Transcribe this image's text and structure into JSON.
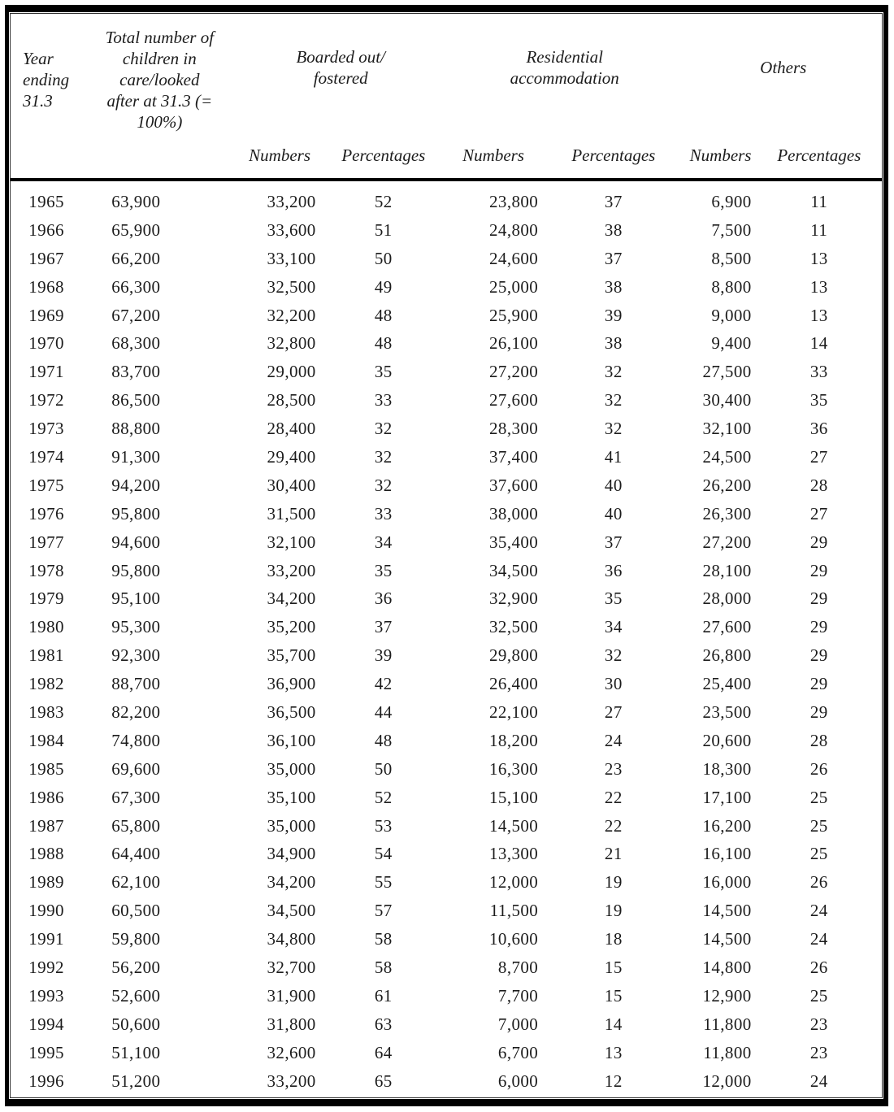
{
  "table": {
    "header": {
      "year": "Year\nending\n31.3",
      "total": "Total number of\nchildren in\ncare/looked\nafter at 31.3 (=\n100%)",
      "boarded_out": "Boarded out/\nfostered",
      "residential": "Residential\naccommodation",
      "others": "Others",
      "numbers_label": "Numbers",
      "percentages_label": "Percentages"
    },
    "columns": [
      "year",
      "total-in-care",
      "boarded-out-numbers",
      "boarded-out-percentage",
      "residential-numbers",
      "residential-percentage",
      "others-numbers",
      "others-percentage"
    ],
    "rows": [
      [
        "1965",
        "63,900",
        "33,200",
        "52",
        "23,800",
        "37",
        "6,900",
        "11"
      ],
      [
        "1966",
        "65,900",
        "33,600",
        "51",
        "24,800",
        "38",
        "7,500",
        "11"
      ],
      [
        "1967",
        "66,200",
        "33,100",
        "50",
        "24,600",
        "37",
        "8,500",
        "13"
      ],
      [
        "1968",
        "66,300",
        "32,500",
        "49",
        "25,000",
        "38",
        "8,800",
        "13"
      ],
      [
        "1969",
        "67,200",
        "32,200",
        "48",
        "25,900",
        "39",
        "9,000",
        "13"
      ],
      [
        "1970",
        "68,300",
        "32,800",
        "48",
        "26,100",
        "38",
        "9,400",
        "14"
      ],
      [
        "1971",
        "83,700",
        "29,000",
        "35",
        "27,200",
        "32",
        "27,500",
        "33"
      ],
      [
        "1972",
        "86,500",
        "28,500",
        "33",
        "27,600",
        "32",
        "30,400",
        "35"
      ],
      [
        "1973",
        "88,800",
        "28,400",
        "32",
        "28,300",
        "32",
        "32,100",
        "36"
      ],
      [
        "1974",
        "91,300",
        "29,400",
        "32",
        "37,400",
        "41",
        "24,500",
        "27"
      ],
      [
        "1975",
        "94,200",
        "30,400",
        "32",
        "37,600",
        "40",
        "26,200",
        "28"
      ],
      [
        "1976",
        "95,800",
        "31,500",
        "33",
        "38,000",
        "40",
        "26,300",
        "27"
      ],
      [
        "1977",
        "94,600",
        "32,100",
        "34",
        "35,400",
        "37",
        "27,200",
        "29"
      ],
      [
        "1978",
        "95,800",
        "33,200",
        "35",
        "34,500",
        "36",
        "28,100",
        "29"
      ],
      [
        "1979",
        "95,100",
        "34,200",
        "36",
        "32,900",
        "35",
        "28,000",
        "29"
      ],
      [
        "1980",
        "95,300",
        "35,200",
        "37",
        "32,500",
        "34",
        "27,600",
        "29"
      ],
      [
        "1981",
        "92,300",
        "35,700",
        "39",
        "29,800",
        "32",
        "26,800",
        "29"
      ],
      [
        "1982",
        "88,700",
        "36,900",
        "42",
        "26,400",
        "30",
        "25,400",
        "29"
      ],
      [
        "1983",
        "82,200",
        "36,500",
        "44",
        "22,100",
        "27",
        "23,500",
        "29"
      ],
      [
        "1984",
        "74,800",
        "36,100",
        "48",
        "18,200",
        "24",
        "20,600",
        "28"
      ],
      [
        "1985",
        "69,600",
        "35,000",
        "50",
        "16,300",
        "23",
        "18,300",
        "26"
      ],
      [
        "1986",
        "67,300",
        "35,100",
        "52",
        "15,100",
        "22",
        "17,100",
        "25"
      ],
      [
        "1987",
        "65,800",
        "35,000",
        "53",
        "14,500",
        "22",
        "16,200",
        "25"
      ],
      [
        "1988",
        "64,400",
        "34,900",
        "54",
        "13,300",
        "21",
        "16,100",
        "25"
      ],
      [
        "1989",
        "62,100",
        "34,200",
        "55",
        "12,000",
        "19",
        "16,000",
        "26"
      ],
      [
        "1990",
        "60,500",
        "34,500",
        "57",
        "11,500",
        "19",
        "14,500",
        "24"
      ],
      [
        "1991",
        "59,800",
        "34,800",
        "58",
        "10,600",
        "18",
        "14,500",
        "24"
      ],
      [
        "1992",
        "56,200",
        "32,700",
        "58",
        "8,700",
        "15",
        "14,800",
        "26"
      ],
      [
        "1993",
        "52,600",
        "31,900",
        "61",
        "7,700",
        "15",
        "12,900",
        "25"
      ],
      [
        "1994",
        "50,600",
        "31,800",
        "63",
        "7,000",
        "14",
        "11,800",
        "23"
      ],
      [
        "1995",
        "51,100",
        "32,600",
        "64",
        "6,700",
        "13",
        "11,800",
        "23"
      ],
      [
        "1996",
        "51,200",
        "33,200",
        "65",
        "6,000",
        "12",
        "12,000",
        "24"
      ]
    ]
  }
}
